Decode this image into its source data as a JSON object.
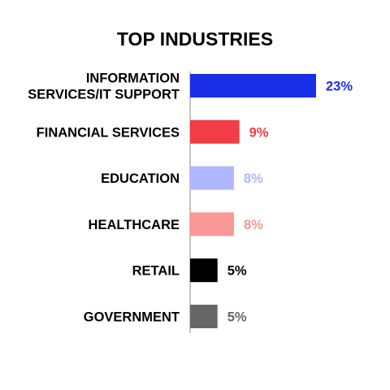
{
  "chart_data": {
    "type": "bar",
    "orientation": "horizontal",
    "title": "TOP INDUSTRIES",
    "categories": [
      [
        "INFORMATION",
        "SERVICES/IT SUPPORT"
      ],
      [
        "FINANCIAL SERVICES"
      ],
      [
        "EDUCATION"
      ],
      [
        "HEALTHCARE"
      ],
      [
        "RETAIL"
      ],
      [
        "GOVERNMENT"
      ]
    ],
    "values": [
      23,
      9,
      8,
      8,
      5,
      5
    ],
    "value_labels": [
      "23%",
      "9%",
      "8%",
      "8%",
      "5%",
      "5%"
    ],
    "unit": "%",
    "colors": [
      "#1a2ee8",
      "#f23c46",
      "#b0b6ff",
      "#fa9797",
      "#000000",
      "#666666"
    ],
    "label_colors": [
      "#1a2ee8",
      "#f23c46",
      "#b0b6ff",
      "#fa9797",
      "#000000",
      "#666666"
    ],
    "axis_color": "#8a8a8a",
    "xlim": [
      0,
      23
    ],
    "grid": false,
    "legend": "none"
  }
}
